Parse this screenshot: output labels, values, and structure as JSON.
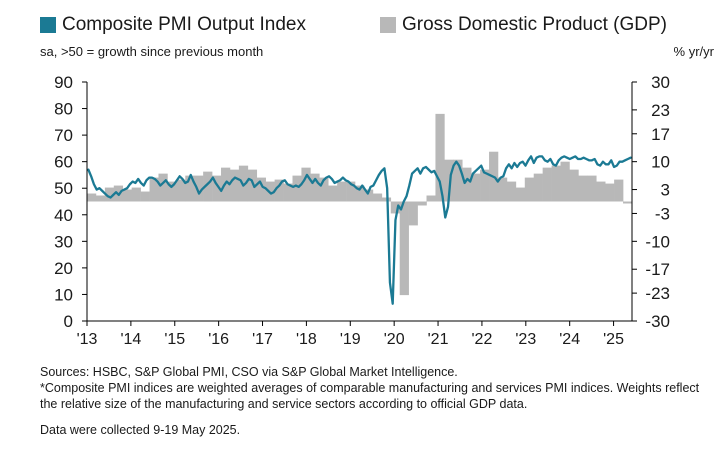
{
  "chart_data": {
    "type": "bar+line",
    "legend": [
      {
        "label": "Composite PMI Output Index",
        "color": "#1b7a94"
      },
      {
        "label": "Gross Domestic Product (GDP)",
        "color": "#b8b8b8"
      }
    ],
    "subtitle_left": "sa, >50 = growth since previous month",
    "subtitle_right": "% yr/yr",
    "left_axis": {
      "ticks": [
        0,
        10,
        20,
        30,
        40,
        50,
        60,
        70,
        80,
        90
      ]
    },
    "right_axis": {
      "ticks": [
        -30,
        -23,
        -17,
        -10,
        -3,
        3,
        10,
        17,
        23,
        30
      ]
    },
    "x_labels": [
      "'13",
      "'14",
      "'15",
      "'16",
      "'17",
      "'18",
      "'19",
      "'20",
      "'21",
      "'22",
      "'23",
      "'24",
      "'25"
    ],
    "gdp_series": {
      "name": "Gross Domestic Product (GDP)",
      "values": [
        2,
        1.5,
        3.5,
        4,
        3,
        3.5,
        2.5,
        6,
        7,
        5,
        5.5,
        6.5,
        6.5,
        7.5,
        6.5,
        8.5,
        8,
        9,
        8,
        6,
        5,
        5.5,
        4.5,
        6.5,
        8.5,
        7,
        6,
        4,
        5,
        5,
        4,
        3,
        2,
        1,
        -3,
        -23.5,
        -6,
        -1,
        1.5,
        22,
        10.5,
        10.5,
        8.5,
        7,
        8,
        12.5,
        6,
        5,
        3.5,
        6,
        7,
        8.5,
        9,
        10,
        8,
        6.5,
        6.5,
        5,
        4.5,
        5.5,
        -0.5
      ]
    },
    "pmi_series": {
      "name": "Composite PMI Output Index",
      "values": [
        57,
        54.5,
        51.5,
        49.5,
        50,
        49,
        48,
        47,
        46.5,
        47.5,
        48.5,
        47.5,
        49,
        49.5,
        50,
        51.5,
        52.5,
        52,
        53.5,
        52,
        51,
        53,
        54,
        54,
        53.5,
        52.5,
        51,
        52,
        53,
        51.5,
        50.5,
        51.5,
        53,
        54.5,
        53.5,
        52,
        52.5,
        55,
        52.5,
        50.5,
        48,
        49.5,
        50.5,
        51.5,
        52.5,
        54,
        52,
        50.5,
        49,
        51,
        52.5,
        51.5,
        53,
        54,
        53.5,
        53,
        51,
        52,
        53.5,
        53,
        50.5,
        51.5,
        52.5,
        50.5,
        50,
        49,
        48,
        48.5,
        50,
        51,
        52.5,
        53,
        51.5,
        51,
        50.5,
        51,
        50.5,
        51.5,
        53,
        55,
        53.5,
        52,
        53.5,
        52,
        51,
        53,
        54,
        54.5,
        53.5,
        52,
        52.5,
        53,
        54,
        53,
        52.5,
        51.5,
        51,
        50,
        49.5,
        51,
        49.5,
        48,
        50.5,
        51,
        53,
        55,
        56.5,
        57.5,
        50,
        14.5,
        6.5,
        38,
        43.5,
        42,
        45,
        47,
        51,
        55.5,
        56.5,
        57.5,
        55.5,
        57.5,
        58,
        57,
        56,
        56.5,
        54.5,
        52.5,
        47,
        39,
        43,
        55,
        58.5,
        60,
        58.5,
        55.5,
        52,
        53.5,
        52.5,
        55.5,
        56.5,
        57.5,
        58.5,
        56,
        55.5,
        55,
        54.5,
        54,
        52.5,
        54,
        54.5,
        57.5,
        59,
        57.5,
        59.5,
        58,
        59.5,
        60,
        58.5,
        60.5,
        62,
        59.5,
        61.5,
        62,
        62,
        60.5,
        60,
        61,
        59,
        58.5,
        60.5,
        61.5,
        62,
        61.5,
        61,
        61.5,
        62,
        61,
        61,
        61.5,
        61,
        60.5,
        60.5,
        61,
        59,
        58.5,
        60,
        59,
        59,
        60.5,
        58,
        58.5,
        60,
        60,
        60.5,
        61,
        61.5
      ]
    }
  },
  "footnotes": {
    "sources": "Sources: HSBC, S&P Global PMI, CSO via S&P Global Market Intelligence.",
    "note": "*Composite PMI indices are weighted averages of comparable manufacturing and services PMI indices. Weights reflect the relative size of the manufacturing and service sectors according to official GDP data.",
    "collected": "Data were collected 9-19 May 2025."
  }
}
